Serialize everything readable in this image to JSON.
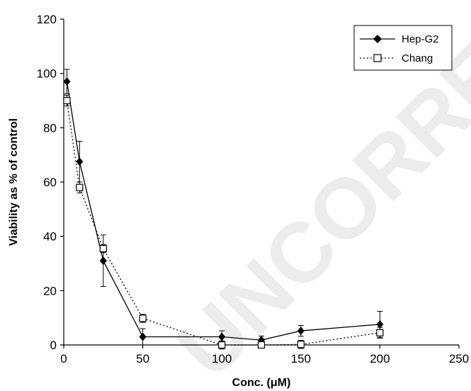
{
  "chart_data": {
    "type": "line",
    "title": "",
    "xlabel": "Conc. (μM)",
    "ylabel": "Viability as % of control",
    "xlim": [
      0,
      250
    ],
    "ylim": [
      0,
      120
    ],
    "x_ticks": [
      0,
      50,
      100,
      150,
      200,
      250
    ],
    "y_ticks": [
      0,
      20,
      40,
      60,
      80,
      100,
      120
    ],
    "grid": false,
    "legend_position": "top-right",
    "watermark_text": "UNCORRECTED",
    "series": [
      {
        "name": "Hep-G2",
        "marker": "filled-diamond",
        "line_style": "solid",
        "color": "#000000",
        "x": [
          2,
          10,
          25,
          50,
          100,
          125,
          150,
          200
        ],
        "y": [
          97,
          67.5,
          31,
          3,
          3,
          1.8,
          5.2,
          7.6
        ],
        "error": [
          4.5,
          7.5,
          9.5,
          3,
          2.2,
          1.5,
          2,
          4.8
        ]
      },
      {
        "name": "Chang",
        "marker": "open-square",
        "line_style": "dotted",
        "color": "#000000",
        "x": [
          2,
          10,
          25,
          50,
          100,
          125,
          150,
          200
        ],
        "y": [
          90,
          58,
          35.5,
          9.8,
          0,
          0,
          0.2,
          4.5
        ],
        "error": [
          2,
          2,
          1.5,
          1.5,
          1.5,
          0.5,
          1.5,
          2
        ]
      }
    ]
  }
}
